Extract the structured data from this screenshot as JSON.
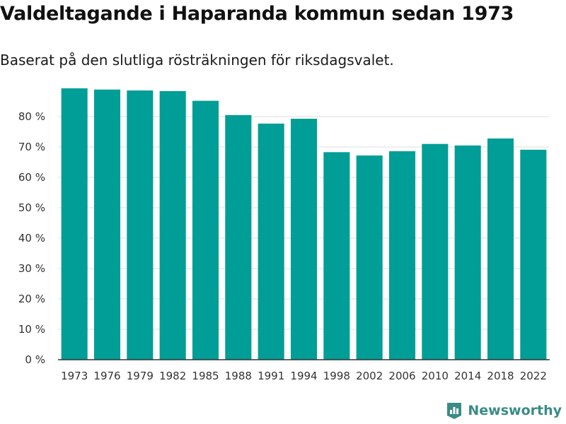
{
  "title": "Valdeltagande i Haparanda kommun sedan 1973",
  "subtitle": "Baserat på den slutliga rösträkningen för riksdagsvalet.",
  "brand": {
    "name": "Newsworthy",
    "icon": "newsworthy-logo-icon"
  },
  "colors": {
    "bar": "#009e96",
    "grid": "#dddddd",
    "axis": "#333333",
    "brand": "#3a8c86"
  },
  "chart_data": {
    "type": "bar",
    "categories": [
      "1973",
      "1976",
      "1979",
      "1982",
      "1985",
      "1988",
      "1991",
      "1994",
      "1998",
      "2002",
      "2006",
      "2010",
      "2014",
      "2018",
      "2022"
    ],
    "values": [
      89.3,
      88.9,
      88.6,
      88.4,
      85.2,
      80.5,
      77.7,
      79.3,
      68.3,
      67.2,
      68.6,
      71.0,
      70.5,
      72.8,
      69.1
    ],
    "ylim": [
      0,
      90
    ],
    "yticks": [
      0,
      10,
      20,
      30,
      40,
      50,
      60,
      70,
      80
    ],
    "ytick_labels": [
      "0 %",
      "10 %",
      "20 %",
      "30 %",
      "40 %",
      "50 %",
      "60 %",
      "70 %",
      "80 %"
    ],
    "xlabel": "",
    "ylabel": "",
    "grid": true
  }
}
